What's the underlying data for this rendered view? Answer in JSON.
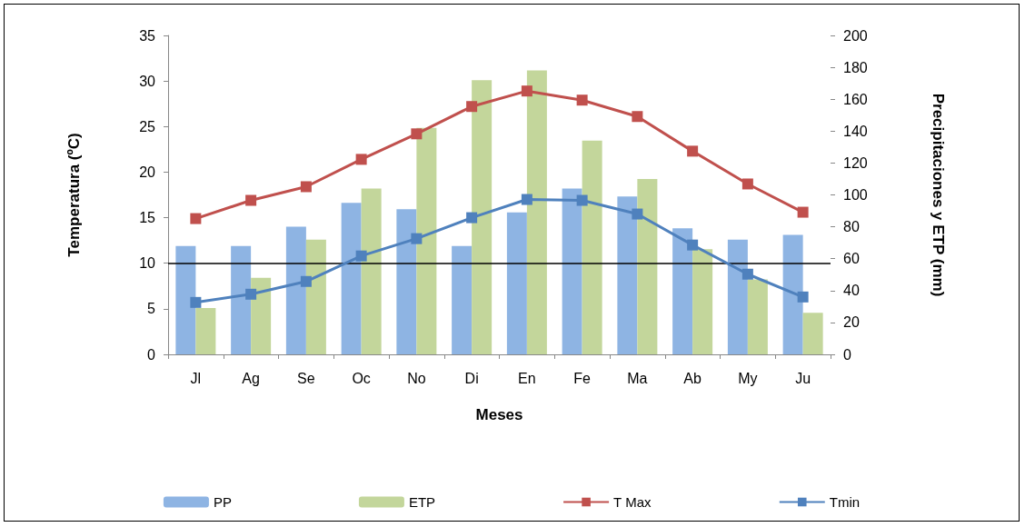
{
  "chart_data": {
    "type": "bar",
    "xlabel": "Meses",
    "ylabel": "Temperatura (ºC)",
    "y2label": "Precipitaciones y ETP (mm)",
    "categories": [
      "Jl",
      "Ag",
      "Se",
      "Oc",
      "No",
      "Di",
      "En",
      "Fe",
      "Ma",
      "Ab",
      "My",
      "Ju"
    ],
    "series": [
      {
        "name": "PP",
        "axis": "y2",
        "color": "#8eb4e3",
        "values": [
          68,
          68,
          80,
          95,
          91,
          68,
          89,
          104,
          99,
          79,
          72,
          75
        ]
      },
      {
        "name": "ETP",
        "axis": "y2",
        "color": "#c3d69b",
        "values": [
          29,
          48,
          72,
          104,
          142,
          172,
          178,
          134,
          110,
          66,
          47,
          26
        ]
      },
      {
        "name": "T Max",
        "type": "line",
        "color": "#c0504d",
        "values": [
          14.9,
          16.9,
          18.4,
          21.4,
          24.2,
          27.2,
          28.9,
          27.9,
          26.1,
          22.3,
          18.7,
          15.6
        ]
      },
      {
        "name": "Tmin",
        "type": "line",
        "color": "#4f81bd",
        "values": [
          5.7,
          6.6,
          8.0,
          10.8,
          12.7,
          15.0,
          17.0,
          16.9,
          15.4,
          12.0,
          8.8,
          6.3
        ]
      }
    ],
    "ylim": [
      0,
      35
    ],
    "yticks": [
      0,
      5,
      10,
      15,
      20,
      25,
      30,
      35
    ],
    "y2lim": [
      0,
      200
    ],
    "y2ticks": [
      0,
      20,
      40,
      60,
      80,
      100,
      120,
      140,
      160,
      180,
      200
    ],
    "ref_lines": [
      {
        "axis": "y",
        "value": 10,
        "color": "#000000"
      }
    ],
    "grid": false,
    "legend": "bottom",
    "marker": "square",
    "line_style": "solid"
  }
}
